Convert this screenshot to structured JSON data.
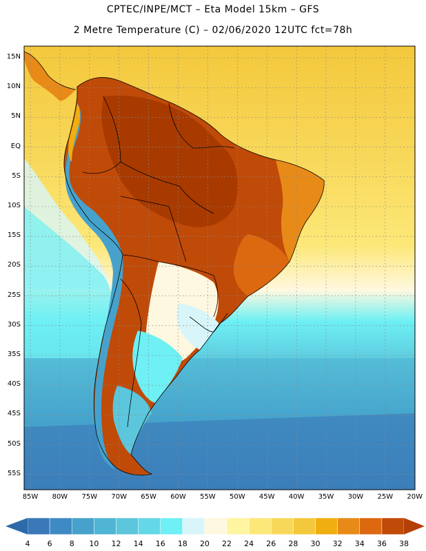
{
  "title": {
    "line1": "CPTEC/INPE/MCT –  Eta Model 15km – GFS",
    "line2": "2 Metre Temperature (C) – 02/06/2020 12UTC fct=78h"
  },
  "axes": {
    "lat_labels": [
      "15N",
      "10N",
      "5N",
      "EQ",
      "5S",
      "10S",
      "15S",
      "20S",
      "25S",
      "30S",
      "35S",
      "40S",
      "45S",
      "50S",
      "55S"
    ],
    "lon_labels": [
      "85W",
      "80W",
      "75W",
      "70W",
      "65W",
      "60W",
      "55W",
      "50W",
      "45W",
      "40W",
      "35W",
      "30W",
      "25W",
      "20W"
    ]
  },
  "colorbar": {
    "labels": [
      "4",
      "6",
      "8",
      "10",
      "12",
      "14",
      "16",
      "18",
      "20",
      "22",
      "24",
      "26",
      "28",
      "30",
      "32",
      "34",
      "36",
      "38"
    ],
    "colors": [
      "#3a78b8",
      "#3e8ac4",
      "#46a2cc",
      "#50b4d4",
      "#5bc6dc",
      "#64d8e6",
      "#6ef0f4",
      "#d8f6fa",
      "#fff8e0",
      "#fff4a0",
      "#fce878",
      "#f8d85a",
      "#f4c83c",
      "#f0ae10",
      "#e88a18",
      "#dc6810",
      "#c04a08"
    ],
    "low_color": "#2c6aa8",
    "high_color": "#b44008"
  },
  "colors": {
    "land_hot": "#a83a00",
    "land_warm": "#d06c10",
    "land_mild": "#f0ae10",
    "ocean_tropical": "#f4d060",
    "ocean_mid": "#5bc6dc",
    "ocean_south": "#3a78b8",
    "andes": "#46a2cc",
    "border_line": "#000000",
    "grid_line": "#8a8a8a"
  }
}
